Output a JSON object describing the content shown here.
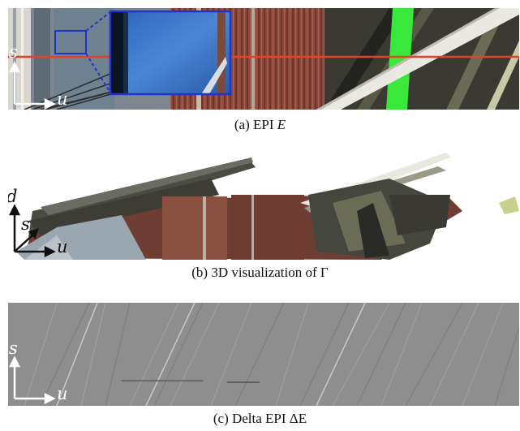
{
  "figure": {
    "panel_a": {
      "caption_prefix": "(a) EPI",
      "caption_symbol": "E",
      "axis_s": "s",
      "axis_u": "u",
      "colors": {
        "scanline": "#e8412a",
        "highlight": "#39e83a",
        "inset_border": "#2233cc"
      }
    },
    "panel_b": {
      "caption_prefix": "(b) 3D visualization of",
      "caption_symbol": "Γ",
      "axis_d": "d",
      "axis_s": "s",
      "axis_u": "u"
    },
    "panel_c": {
      "caption_prefix": "(c) Delta EPI",
      "caption_symbol": "ΔE",
      "axis_s": "s",
      "axis_u": "u"
    }
  }
}
